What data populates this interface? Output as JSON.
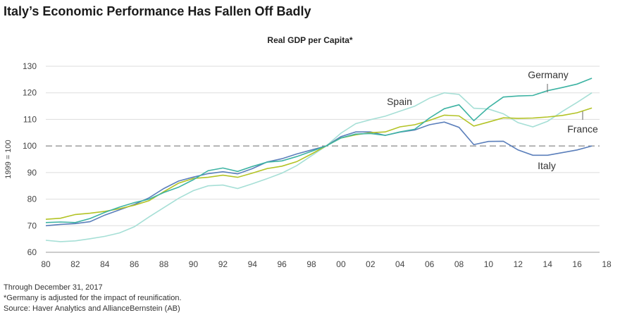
{
  "title": "Italy’s Economic Performance Has Fallen Off Badly",
  "footnotes": [
    "Through December 31, 2017",
    "*Germany is adjusted for the impact of reunification.",
    "Source: Haver Analytics and AllianceBernstein (AB)"
  ],
  "chart_data": {
    "type": "line",
    "title": "Real GDP per Capita*",
    "xlabel": "",
    "ylabel": "1999 = 100",
    "xlim": [
      1980,
      2018
    ],
    "ylim": [
      60,
      130
    ],
    "x_ticks": [
      "80",
      "82",
      "84",
      "86",
      "88",
      "90",
      "92",
      "94",
      "96",
      "98",
      "00",
      "02",
      "04",
      "06",
      "08",
      "10",
      "12",
      "14",
      "16",
      "18"
    ],
    "y_ticks": [
      "60",
      "70",
      "80",
      "90",
      "100",
      "110",
      "120",
      "130"
    ],
    "reference_line": 100,
    "grid": true,
    "x_start": 1980,
    "series": [
      {
        "name": "Italy",
        "color": "#5b7fbb",
        "values": [
          70,
          70.5,
          70.8,
          71.5,
          74,
          76,
          78,
          80.5,
          84,
          86.8,
          88.3,
          89.6,
          90.3,
          89.5,
          91.5,
          94,
          95.2,
          97,
          98.5,
          100,
          103.5,
          105.3,
          105.3,
          104,
          105.2,
          106,
          108,
          109,
          107,
          100.5,
          101.7,
          101.8,
          98.5,
          96.5,
          96.5,
          97.5,
          98.5,
          100
        ]
      },
      {
        "name": "Germany",
        "color": "#3db3a3",
        "values": [
          71.2,
          71.4,
          71.2,
          72.7,
          75,
          77,
          78.7,
          80,
          82.5,
          84.5,
          87.3,
          90.7,
          91.7,
          90.4,
          92.3,
          93.9,
          94.4,
          96,
          98,
          100,
          103,
          104.5,
          104.7,
          104,
          105.3,
          106.3,
          110.5,
          114,
          115.5,
          109.5,
          114.5,
          118.4,
          118.8,
          119,
          120.8,
          122,
          123.3,
          125.5
        ]
      },
      {
        "name": "France",
        "color": "#b3c325",
        "values": [
          72.4,
          72.8,
          74.2,
          74.7,
          75.4,
          76.4,
          77.7,
          79.4,
          82.8,
          86,
          87.8,
          88.2,
          89,
          88.2,
          89.8,
          91.5,
          92.4,
          94.1,
          97,
          100,
          103,
          104.2,
          105,
          105.3,
          107.2,
          108,
          109.6,
          111.6,
          111.3,
          107.5,
          109,
          110.6,
          110.4,
          110.5,
          110.9,
          111.5,
          112.5,
          114.3
        ]
      },
      {
        "name": "Spain",
        "color": "#a6dfd6",
        "values": [
          64.5,
          64,
          64.3,
          65.1,
          66,
          67.3,
          69.6,
          73.3,
          76.8,
          80.3,
          83.2,
          85,
          85.3,
          84,
          85.8,
          87.7,
          89.8,
          92.6,
          96.3,
          100,
          104.8,
          108.4,
          109.9,
          111.2,
          113.1,
          115,
          118,
          120,
          119.4,
          114.2,
          113.9,
          112.1,
          108.8,
          107.2,
          109.3,
          113,
          116.4,
          120
        ]
      }
    ]
  }
}
